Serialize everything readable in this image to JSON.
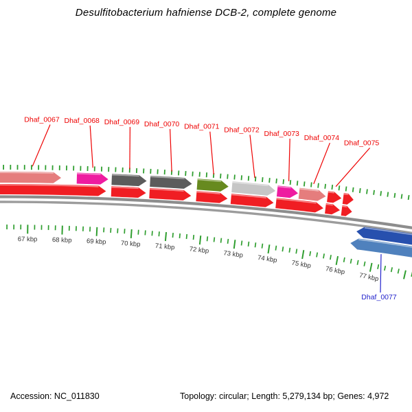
{
  "title": "Desulfitobacterium hafniense DCB-2, complete genome",
  "footer": {
    "accession": "Accession: NC_011830",
    "stats": "Topology: circular; Length: 5,279,134 bp; Genes: 4,972"
  },
  "chart_data": {
    "type": "genome-map-arc",
    "accession": "NC_011830",
    "topology": "circular",
    "length_bp": 5279134,
    "gene_count": 4972,
    "view_start_kbp": 66.2,
    "view_end_kbp": 78.2,
    "ruler_unit": "kbp",
    "tick_minor_kbp": 0.2,
    "tick_major_kbp": 1,
    "ruler_values_kbp": [
      67,
      68,
      69,
      70,
      71,
      72,
      73,
      74,
      75,
      76,
      77
    ],
    "ruler_labels": [
      "67 kbp",
      "68 kbp",
      "69 kbp",
      "70 kbp",
      "71 kbp",
      "72 kbp",
      "73 kbp",
      "74 kbp",
      "75 kbp",
      "76 kbp",
      "77 kbp"
    ],
    "forward_genes": [
      {
        "name": "Dhaf_0067",
        "start_kbp": 65.85,
        "end_kbp": 67.95,
        "color": "#e57d7d",
        "labeled": true
      },
      {
        "name": "Dhaf_0068",
        "start_kbp": 68.4,
        "end_kbp": 69.3,
        "color": "#ee1ca0",
        "labeled": true
      },
      {
        "name": "Dhaf_0069",
        "start_kbp": 69.4,
        "end_kbp": 70.4,
        "color": "#5c5c5c",
        "labeled": true
      },
      {
        "name": "Dhaf_0070",
        "start_kbp": 70.5,
        "end_kbp": 71.7,
        "color": "#5c5c5c",
        "labeled": true
      },
      {
        "name": "Dhaf_0071",
        "start_kbp": 71.85,
        "end_kbp": 72.75,
        "color": "#678a1f",
        "labeled": true
      },
      {
        "name": "Dhaf_0072",
        "start_kbp": 72.85,
        "end_kbp": 74.1,
        "color": "#c6c6c6",
        "labeled": true
      },
      {
        "name": "Dhaf_0073",
        "start_kbp": 74.15,
        "end_kbp": 74.75,
        "color": "#ee1ca0",
        "labeled": true
      },
      {
        "name": "Dhaf_0074",
        "start_kbp": 74.78,
        "end_kbp": 75.55,
        "color": "#e57d7d",
        "labeled": true
      },
      {
        "name": "Dhaf_0075",
        "start_kbp": 75.6,
        "end_kbp": 76.0,
        "color": "#f01e23",
        "labeled": true
      },
      {
        "name": "",
        "start_kbp": 76.05,
        "end_kbp": 76.35,
        "color": "#f01e23",
        "labeled": false
      }
    ],
    "reverse_genes": [
      {
        "name": "Dhaf_0077",
        "start_kbp": 76.55,
        "end_kbp": 78.45,
        "color": "#2750ae",
        "lane": 1,
        "labeled": true
      },
      {
        "name": "",
        "start_kbp": 76.42,
        "end_kbp": 78.45,
        "color": "#4f81bd",
        "lane": 2,
        "labeled": false
      }
    ],
    "red_ring_segments": [
      {
        "start_kbp": 65.8,
        "end_kbp": 69.25
      },
      {
        "start_kbp": 69.4,
        "end_kbp": 70.4
      },
      {
        "start_kbp": 70.5,
        "end_kbp": 71.7
      },
      {
        "start_kbp": 71.85,
        "end_kbp": 72.75
      },
      {
        "start_kbp": 72.85,
        "end_kbp": 74.08
      },
      {
        "start_kbp": 74.15,
        "end_kbp": 75.52
      },
      {
        "start_kbp": 75.58,
        "end_kbp": 76.0
      },
      {
        "start_kbp": 76.05,
        "end_kbp": 76.35
      }
    ],
    "colors": {
      "red_ring": "#f01e23",
      "tick_green": "#2f9e2f",
      "backbone_gray": "#8d8d8d",
      "backbone_gray_inner": "#9c9c9c",
      "forward_label": "#ee0000",
      "reverse_label": "#2222cc",
      "ruler_text": "#333333",
      "salmon": "#e57d7d",
      "magenta": "#ee1ca0",
      "dark_gray": "#5c5c5c",
      "olive": "#678a1f",
      "light_gray": "#c6c6c6",
      "blue_dark": "#2750ae",
      "blue_steel": "#4f81bd"
    }
  }
}
